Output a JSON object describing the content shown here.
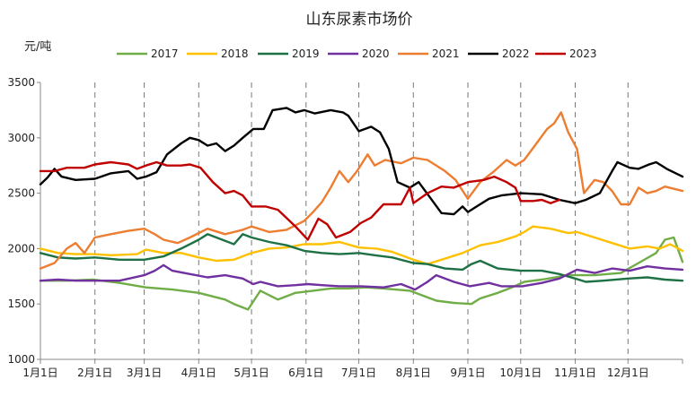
{
  "chart_data": {
    "type": "line",
    "title": "山东尿素市场价",
    "ylabel": "元/吨",
    "xlabel": "",
    "ylim": [
      1000,
      3500
    ],
    "yticks": [
      1000,
      1500,
      2000,
      2500,
      3000,
      3500
    ],
    "grid": "vertical dashed lines at month starts",
    "legend_position": "top",
    "months": [
      "1月1日",
      "2月1日",
      "3月1日",
      "4月1日",
      "5月1日",
      "6月1日",
      "7月1日",
      "8月1日",
      "9月1日",
      "10月1日",
      "11月1日",
      "12月1日"
    ],
    "series": [
      {
        "name": "2017",
        "color": "#70AD47",
        "points": [
          [
            0,
            1710
          ],
          [
            15,
            1710
          ],
          [
            30,
            1720
          ],
          [
            45,
            1690
          ],
          [
            60,
            1650
          ],
          [
            75,
            1630
          ],
          [
            90,
            1600
          ],
          [
            105,
            1540
          ],
          [
            110,
            1500
          ],
          [
            118,
            1450
          ],
          [
            125,
            1620
          ],
          [
            135,
            1540
          ],
          [
            145,
            1600
          ],
          [
            155,
            1620
          ],
          [
            165,
            1640
          ],
          [
            175,
            1640
          ],
          [
            185,
            1650
          ],
          [
            195,
            1640
          ],
          [
            210,
            1620
          ],
          [
            225,
            1530
          ],
          [
            235,
            1510
          ],
          [
            245,
            1500
          ],
          [
            250,
            1550
          ],
          [
            260,
            1600
          ],
          [
            268,
            1650
          ],
          [
            275,
            1700
          ],
          [
            285,
            1720
          ],
          [
            300,
            1760
          ],
          [
            315,
            1760
          ],
          [
            330,
            1780
          ],
          [
            340,
            1870
          ],
          [
            350,
            1960
          ],
          [
            355,
            2080
          ],
          [
            360,
            2100
          ],
          [
            365,
            1880
          ]
        ]
      },
      {
        "name": "2018",
        "color": "#FFC000",
        "points": [
          [
            0,
            2000
          ],
          [
            10,
            1960
          ],
          [
            20,
            1950
          ],
          [
            30,
            1950
          ],
          [
            40,
            1940
          ],
          [
            55,
            1950
          ],
          [
            60,
            1990
          ],
          [
            70,
            1960
          ],
          [
            80,
            1960
          ],
          [
            90,
            1920
          ],
          [
            100,
            1890
          ],
          [
            110,
            1900
          ],
          [
            120,
            1960
          ],
          [
            130,
            2000
          ],
          [
            140,
            2010
          ],
          [
            150,
            2040
          ],
          [
            160,
            2040
          ],
          [
            170,
            2060
          ],
          [
            181,
            2010
          ],
          [
            191,
            2000
          ],
          [
            200,
            1970
          ],
          [
            212,
            1900
          ],
          [
            220,
            1860
          ],
          [
            232,
            1920
          ],
          [
            240,
            1960
          ],
          [
            250,
            2030
          ],
          [
            260,
            2060
          ],
          [
            270,
            2110
          ],
          [
            275,
            2150
          ],
          [
            280,
            2200
          ],
          [
            290,
            2180
          ],
          [
            300,
            2140
          ],
          [
            305,
            2150
          ],
          [
            315,
            2100
          ],
          [
            325,
            2050
          ],
          [
            335,
            2000
          ],
          [
            345,
            2020
          ],
          [
            352,
            2000
          ],
          [
            358,
            2040
          ],
          [
            365,
            1980
          ]
        ]
      },
      {
        "name": "2019",
        "color": "#1E7145",
        "points": [
          [
            0,
            1960
          ],
          [
            10,
            1920
          ],
          [
            20,
            1910
          ],
          [
            31,
            1920
          ],
          [
            45,
            1900
          ],
          [
            59,
            1900
          ],
          [
            70,
            1930
          ],
          [
            80,
            2000
          ],
          [
            90,
            2080
          ],
          [
            95,
            2130
          ],
          [
            105,
            2070
          ],
          [
            110,
            2040
          ],
          [
            115,
            2130
          ],
          [
            120,
            2100
          ],
          [
            130,
            2060
          ],
          [
            140,
            2030
          ],
          [
            150,
            1980
          ],
          [
            160,
            1960
          ],
          [
            170,
            1950
          ],
          [
            181,
            1960
          ],
          [
            190,
            1940
          ],
          [
            200,
            1920
          ],
          [
            212,
            1870
          ],
          [
            220,
            1860
          ],
          [
            230,
            1820
          ],
          [
            240,
            1810
          ],
          [
            245,
            1860
          ],
          [
            250,
            1890
          ],
          [
            260,
            1820
          ],
          [
            273,
            1800
          ],
          [
            285,
            1800
          ],
          [
            295,
            1770
          ],
          [
            304,
            1730
          ],
          [
            310,
            1700
          ],
          [
            320,
            1710
          ],
          [
            334,
            1730
          ],
          [
            345,
            1740
          ],
          [
            355,
            1720
          ],
          [
            365,
            1710
          ]
        ]
      },
      {
        "name": "2020",
        "color": "#7030A0",
        "points": [
          [
            0,
            1710
          ],
          [
            10,
            1720
          ],
          [
            20,
            1710
          ],
          [
            31,
            1710
          ],
          [
            45,
            1710
          ],
          [
            59,
            1760
          ],
          [
            65,
            1800
          ],
          [
            70,
            1850
          ],
          [
            75,
            1800
          ],
          [
            85,
            1770
          ],
          [
            95,
            1740
          ],
          [
            105,
            1760
          ],
          [
            115,
            1730
          ],
          [
            121,
            1680
          ],
          [
            125,
            1700
          ],
          [
            135,
            1660
          ],
          [
            145,
            1670
          ],
          [
            152,
            1680
          ],
          [
            160,
            1670
          ],
          [
            170,
            1660
          ],
          [
            182,
            1660
          ],
          [
            195,
            1650
          ],
          [
            205,
            1680
          ],
          [
            213,
            1630
          ],
          [
            220,
            1700
          ],
          [
            225,
            1760
          ],
          [
            235,
            1700
          ],
          [
            244,
            1660
          ],
          [
            255,
            1690
          ],
          [
            262,
            1660
          ],
          [
            274,
            1660
          ],
          [
            285,
            1690
          ],
          [
            295,
            1730
          ],
          [
            305,
            1810
          ],
          [
            315,
            1780
          ],
          [
            325,
            1820
          ],
          [
            335,
            1800
          ],
          [
            345,
            1840
          ],
          [
            355,
            1820
          ],
          [
            365,
            1810
          ]
        ]
      },
      {
        "name": "2021",
        "color": "#ED7D31",
        "points": [
          [
            0,
            1820
          ],
          [
            8,
            1870
          ],
          [
            15,
            2000
          ],
          [
            20,
            2050
          ],
          [
            25,
            1960
          ],
          [
            31,
            2100
          ],
          [
            40,
            2130
          ],
          [
            50,
            2160
          ],
          [
            59,
            2180
          ],
          [
            65,
            2130
          ],
          [
            70,
            2080
          ],
          [
            78,
            2050
          ],
          [
            85,
            2100
          ],
          [
            95,
            2180
          ],
          [
            105,
            2130
          ],
          [
            115,
            2170
          ],
          [
            120,
            2200
          ],
          [
            130,
            2150
          ],
          [
            140,
            2170
          ],
          [
            150,
            2250
          ],
          [
            155,
            2330
          ],
          [
            160,
            2420
          ],
          [
            165,
            2550
          ],
          [
            170,
            2700
          ],
          [
            175,
            2600
          ],
          [
            180,
            2700
          ],
          [
            186,
            2850
          ],
          [
            190,
            2750
          ],
          [
            196,
            2800
          ],
          [
            205,
            2770
          ],
          [
            212,
            2820
          ],
          [
            220,
            2800
          ],
          [
            230,
            2700
          ],
          [
            236,
            2620
          ],
          [
            243,
            2450
          ],
          [
            250,
            2600
          ],
          [
            258,
            2700
          ],
          [
            265,
            2800
          ],
          [
            270,
            2750
          ],
          [
            275,
            2800
          ],
          [
            282,
            2950
          ],
          [
            288,
            3080
          ],
          [
            292,
            3130
          ],
          [
            296,
            3230
          ],
          [
            300,
            3050
          ],
          [
            305,
            2900
          ],
          [
            309,
            2500
          ],
          [
            315,
            2620
          ],
          [
            320,
            2600
          ],
          [
            325,
            2520
          ],
          [
            330,
            2400
          ],
          [
            335,
            2400
          ],
          [
            340,
            2550
          ],
          [
            345,
            2500
          ],
          [
            350,
            2520
          ],
          [
            355,
            2560
          ],
          [
            365,
            2520
          ]
        ]
      },
      {
        "name": "2022",
        "color": "#000000",
        "points": [
          [
            0,
            2580
          ],
          [
            4,
            2640
          ],
          [
            8,
            2720
          ],
          [
            12,
            2650
          ],
          [
            20,
            2620
          ],
          [
            31,
            2630
          ],
          [
            40,
            2680
          ],
          [
            50,
            2700
          ],
          [
            55,
            2630
          ],
          [
            60,
            2650
          ],
          [
            66,
            2690
          ],
          [
            72,
            2850
          ],
          [
            80,
            2950
          ],
          [
            85,
            3000
          ],
          [
            90,
            2980
          ],
          [
            95,
            2930
          ],
          [
            100,
            2950
          ],
          [
            105,
            2880
          ],
          [
            110,
            2930
          ],
          [
            115,
            3000
          ],
          [
            121,
            3080
          ],
          [
            127,
            3080
          ],
          [
            132,
            3250
          ],
          [
            140,
            3270
          ],
          [
            145,
            3230
          ],
          [
            150,
            3250
          ],
          [
            156,
            3220
          ],
          [
            165,
            3250
          ],
          [
            172,
            3230
          ],
          [
            175,
            3200
          ],
          [
            181,
            3060
          ],
          [
            188,
            3100
          ],
          [
            193,
            3050
          ],
          [
            198,
            2900
          ],
          [
            203,
            2600
          ],
          [
            210,
            2550
          ],
          [
            215,
            2600
          ],
          [
            222,
            2450
          ],
          [
            228,
            2320
          ],
          [
            235,
            2310
          ],
          [
            240,
            2380
          ],
          [
            243,
            2330
          ],
          [
            248,
            2380
          ],
          [
            255,
            2450
          ],
          [
            262,
            2480
          ],
          [
            273,
            2500
          ],
          [
            285,
            2490
          ],
          [
            295,
            2440
          ],
          [
            304,
            2410
          ],
          [
            310,
            2440
          ],
          [
            318,
            2500
          ],
          [
            325,
            2700
          ],
          [
            328,
            2780
          ],
          [
            335,
            2730
          ],
          [
            340,
            2720
          ],
          [
            346,
            2760
          ],
          [
            350,
            2780
          ],
          [
            356,
            2720
          ],
          [
            365,
            2650
          ]
        ]
      },
      {
        "name": "2023",
        "color": "#C00000",
        "points": [
          [
            0,
            2700
          ],
          [
            8,
            2700
          ],
          [
            15,
            2730
          ],
          [
            25,
            2730
          ],
          [
            31,
            2760
          ],
          [
            40,
            2780
          ],
          [
            50,
            2760
          ],
          [
            55,
            2720
          ],
          [
            60,
            2750
          ],
          [
            66,
            2780
          ],
          [
            72,
            2750
          ],
          [
            80,
            2750
          ],
          [
            85,
            2760
          ],
          [
            91,
            2730
          ],
          [
            98,
            2600
          ],
          [
            105,
            2500
          ],
          [
            110,
            2520
          ],
          [
            115,
            2480
          ],
          [
            120,
            2380
          ],
          [
            128,
            2380
          ],
          [
            135,
            2350
          ],
          [
            145,
            2200
          ],
          [
            152,
            2080
          ],
          [
            158,
            2270
          ],
          [
            163,
            2220
          ],
          [
            168,
            2100
          ],
          [
            176,
            2150
          ],
          [
            182,
            2230
          ],
          [
            188,
            2280
          ],
          [
            195,
            2400
          ],
          [
            205,
            2400
          ],
          [
            210,
            2550
          ],
          [
            212,
            2410
          ],
          [
            220,
            2500
          ],
          [
            228,
            2560
          ],
          [
            235,
            2550
          ],
          [
            243,
            2600
          ],
          [
            252,
            2620
          ],
          [
            258,
            2650
          ],
          [
            265,
            2600
          ],
          [
            270,
            2550
          ],
          [
            273,
            2430
          ],
          [
            280,
            2430
          ],
          [
            285,
            2440
          ],
          [
            290,
            2410
          ],
          [
            295,
            2440
          ]
        ]
      }
    ]
  }
}
